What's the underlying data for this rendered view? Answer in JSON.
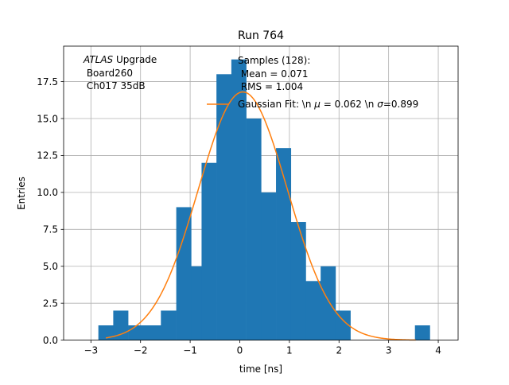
{
  "chart_data": {
    "type": "bar",
    "title": "Run 764",
    "xlabel": "time [ns]",
    "ylabel": "Entries",
    "xlim": [
      -3.55,
      4.4
    ],
    "ylim": [
      0,
      19.9
    ],
    "xticks": [
      -3,
      -2,
      -1,
      0,
      1,
      2,
      3,
      4
    ],
    "xtick_labels": [
      "−3",
      "−2",
      "−1",
      "0",
      "1",
      "2",
      "3",
      "4"
    ],
    "yticks": [
      0,
      2.5,
      5,
      7.5,
      10,
      12.5,
      15,
      17.5
    ],
    "ytick_labels": [
      "0.0",
      "2.5",
      "5.0",
      "7.5",
      "10.0",
      "12.5",
      "15.0",
      "17.5"
    ],
    "grid": true,
    "bin_edges": [
      -2.85,
      -2.55,
      -2.25,
      -1.95,
      -1.59,
      -1.28,
      -0.98,
      -0.77,
      -0.47,
      -0.17,
      0.13,
      0.43,
      0.73,
      1.03,
      1.33,
      1.63,
      1.93,
      2.23,
      3.53,
      3.83
    ],
    "bin_counts": [
      1,
      2,
      1,
      1,
      2,
      9,
      5,
      12,
      18,
      19,
      15,
      10,
      13,
      8,
      4,
      5,
      2,
      0,
      1
    ],
    "bar_color": "#1f77b4",
    "fit": {
      "label": "Gaussian Fit: \\n $\\mu$ = 0.062 \\n $\\sigma$=0.899",
      "label_prefix": "Gaussian Fit: \\n ",
      "mu_symbol": "μ",
      "label_middle": " = 0.062 \\n ",
      "sigma_symbol": "σ",
      "label_suffix": "=0.899",
      "mu": 0.062,
      "sigma": 0.899,
      "amplitude": 16.8,
      "x_range": [
        -2.7,
        3.55
      ],
      "color": "#ff7f0e"
    },
    "annotation_left": {
      "atlas": "ATLAS",
      "upgrade": " Upgrade",
      "line2": " Board260",
      "line3": " Ch017 35dB"
    },
    "legend": {
      "placement": "top-right",
      "samples": "Samples (128):",
      "mean": " Mean = 0.071",
      "rms": " RMS = 1.004"
    }
  }
}
